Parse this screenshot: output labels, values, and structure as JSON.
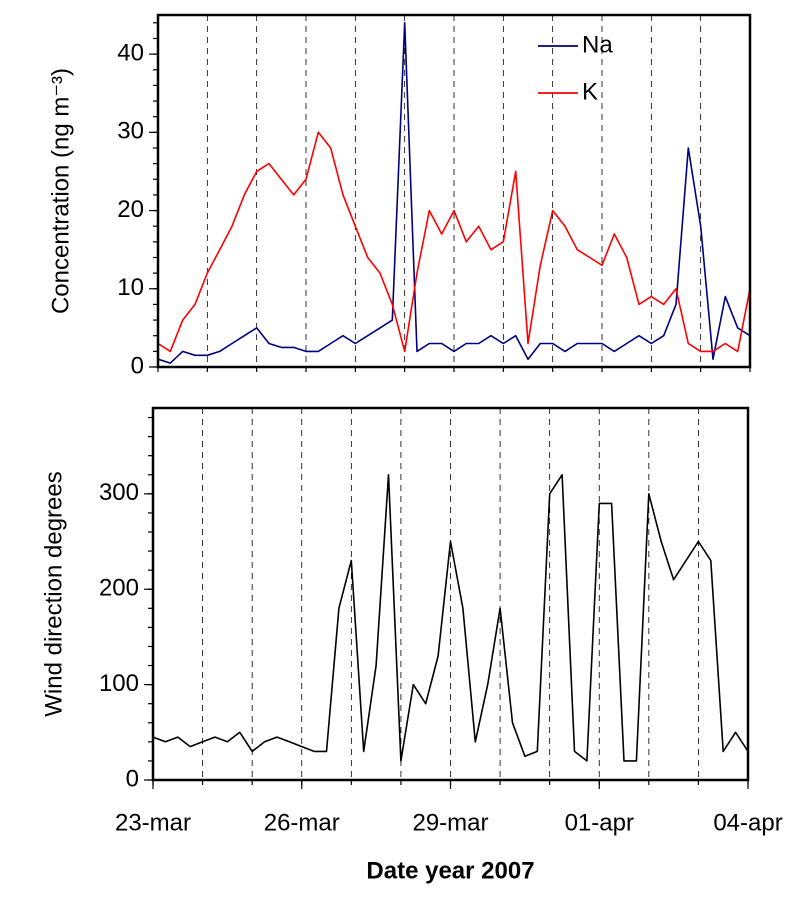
{
  "chart_data": [
    {
      "type": "line",
      "ylabel": "Concentration (ng m⁻³)",
      "x": [
        0,
        0.25,
        0.5,
        0.75,
        1,
        1.25,
        1.5,
        1.75,
        2,
        2.25,
        2.5,
        2.75,
        3,
        3.25,
        3.5,
        3.75,
        4,
        4.25,
        4.5,
        4.75,
        5,
        5.25,
        5.5,
        5.75,
        6,
        6.25,
        6.5,
        6.75,
        7,
        7.25,
        7.5,
        7.75,
        8,
        8.25,
        8.5,
        8.75,
        9,
        9.25,
        9.5,
        9.75,
        10,
        10.25,
        10.5,
        10.75,
        11,
        11.25,
        11.5,
        11.75,
        12
      ],
      "series": [
        {
          "name": "Na",
          "color": "#000080",
          "values": [
            1,
            0.5,
            2,
            1.5,
            1.5,
            2,
            3,
            4,
            5,
            3,
            2.5,
            2.5,
            2,
            2,
            3,
            4,
            3,
            4,
            5,
            6,
            44,
            2,
            3,
            3,
            2,
            3,
            3,
            4,
            3,
            4,
            1,
            3,
            3,
            2,
            3,
            3,
            3,
            2,
            3,
            4,
            3,
            4,
            8,
            28,
            18,
            1,
            9,
            5,
            4
          ]
        },
        {
          "name": "K",
          "color": "#ff0000",
          "values": [
            3,
            2,
            6,
            8,
            12,
            15,
            18,
            22,
            25,
            26,
            24,
            22,
            24,
            30,
            28,
            22,
            18,
            14,
            12,
            8,
            2,
            12,
            20,
            17,
            20,
            16,
            18,
            15,
            16,
            25,
            3,
            13,
            20,
            18,
            15,
            14,
            13,
            17,
            14,
            8,
            9,
            8,
            10,
            3,
            2,
            2,
            3,
            2,
            10
          ]
        }
      ],
      "xlim": [
        0,
        12
      ],
      "ylim": [
        0,
        45
      ],
      "yticks": [
        0,
        10,
        20,
        30,
        40
      ],
      "day_grid": true,
      "legend": "upper right"
    },
    {
      "type": "line",
      "ylabel": "Wind direction degrees",
      "xlabel": "Date year 2007",
      "x": [
        0,
        0.25,
        0.5,
        0.75,
        1,
        1.25,
        1.5,
        1.75,
        2,
        2.25,
        2.5,
        2.75,
        3,
        3.25,
        3.5,
        3.75,
        4,
        4.25,
        4.5,
        4.75,
        5,
        5.25,
        5.5,
        5.75,
        6,
        6.25,
        6.5,
        6.75,
        7,
        7.25,
        7.5,
        7.75,
        8,
        8.25,
        8.5,
        8.75,
        9,
        9.25,
        9.5,
        9.75,
        10,
        10.25,
        10.5,
        10.75,
        11,
        11.25,
        11.5,
        11.75,
        12
      ],
      "color": "#000000",
      "values": [
        45,
        40,
        45,
        35,
        40,
        45,
        40,
        50,
        30,
        40,
        45,
        40,
        35,
        30,
        30,
        180,
        230,
        30,
        120,
        320,
        20,
        100,
        80,
        130,
        250,
        180,
        40,
        100,
        180,
        60,
        25,
        30,
        300,
        320,
        30,
        20,
        290,
        290,
        20,
        20,
        300,
        250,
        210,
        230,
        250,
        230,
        30,
        50,
        30
      ],
      "xlim": [
        0,
        12
      ],
      "ylim": [
        0,
        390
      ],
      "yticks": [
        0,
        100,
        200,
        300
      ],
      "xticks": [
        {
          "value": 0,
          "label": "23-mar"
        },
        {
          "value": 3,
          "label": "26-mar"
        },
        {
          "value": 6,
          "label": "29-mar"
        },
        {
          "value": 9,
          "label": "01-apr"
        },
        {
          "value": 12,
          "label": "04-apr"
        }
      ],
      "day_grid": true
    }
  ]
}
